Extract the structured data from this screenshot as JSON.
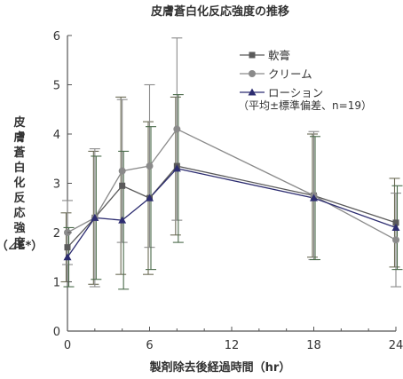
{
  "chart_data": {
    "type": "line",
    "title": "皮膚蒼白化反応強度の推移",
    "xlabel": "製剤除去後経過時間（hr）",
    "ylabel": "皮膚蒼白化反応強度",
    "ylabel_unit": "（⊿E*）",
    "xlim": [
      0,
      24
    ],
    "ylim": [
      0,
      6
    ],
    "xticks": [
      0,
      6,
      12,
      18,
      24
    ],
    "yticks": [
      0,
      1,
      2,
      3,
      4,
      5,
      6
    ],
    "legend_note": "（平均±標準偏差、n=19）",
    "series": [
      {
        "name": "軟膏",
        "marker": "square",
        "color": "#5a5a5a",
        "errcolor": "#6b6b55",
        "x": [
          0,
          2,
          4,
          6,
          8,
          18,
          24
        ],
        "y": [
          1.7,
          2.3,
          2.95,
          2.7,
          3.35,
          2.75,
          2.2
        ],
        "err": [
          0.7,
          1.35,
          1.8,
          1.55,
          1.4,
          1.25,
          0.9
        ]
      },
      {
        "name": "クリーム",
        "marker": "circle",
        "color": "#8a8a8a",
        "errcolor": "#8a8a8a",
        "x": [
          0,
          2,
          4,
          6,
          8,
          18,
          24
        ],
        "y": [
          2.0,
          2.3,
          3.25,
          3.35,
          4.1,
          2.75,
          1.85
        ],
        "err": [
          0.65,
          1.4,
          1.45,
          1.65,
          1.85,
          1.3,
          0.95
        ]
      },
      {
        "name": "ローション",
        "marker": "triangle",
        "color": "#2c2c70",
        "errcolor": "#4a6a4a",
        "x": [
          0,
          2,
          4,
          6,
          8,
          18,
          24
        ],
        "y": [
          1.5,
          2.3,
          2.25,
          2.7,
          3.3,
          2.7,
          2.1
        ],
        "err": [
          0.6,
          1.25,
          1.4,
          1.45,
          1.5,
          1.25,
          0.85
        ]
      }
    ]
  }
}
